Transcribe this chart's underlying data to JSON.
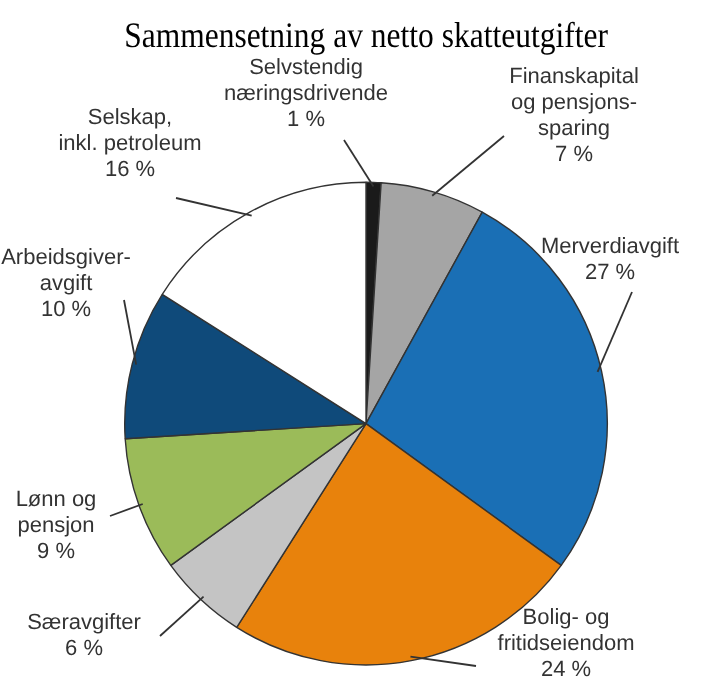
{
  "chart_data": {
    "type": "pie",
    "title": "Sammensetning av netto skatteutgifter",
    "categories": [
      "Selvstendig\nnæringsdrivende",
      "Finanskapital\nog pensjons-\nsparing",
      "Merverdiavgift",
      "Bolig- og\nfritidseiendom",
      "Særavgifter",
      "Lønn og\npensjon",
      "Arbeidsgiver-\navgift",
      "Selskap,\ninkl. petroleum"
    ],
    "values": [
      1,
      7,
      27,
      24,
      6,
      9,
      10,
      16
    ],
    "value_labels": [
      "1 %",
      "7 %",
      "27 %",
      "24 %",
      "6 %",
      "9 %",
      "10 %",
      "16 %"
    ],
    "colors": [
      "#1a1a1a",
      "#a5a5a5",
      "#1a6fb5",
      "#e8820c",
      "#c4c4c4",
      "#9bbb59",
      "#0f4a7a",
      "#ffffff"
    ],
    "legend": false
  }
}
